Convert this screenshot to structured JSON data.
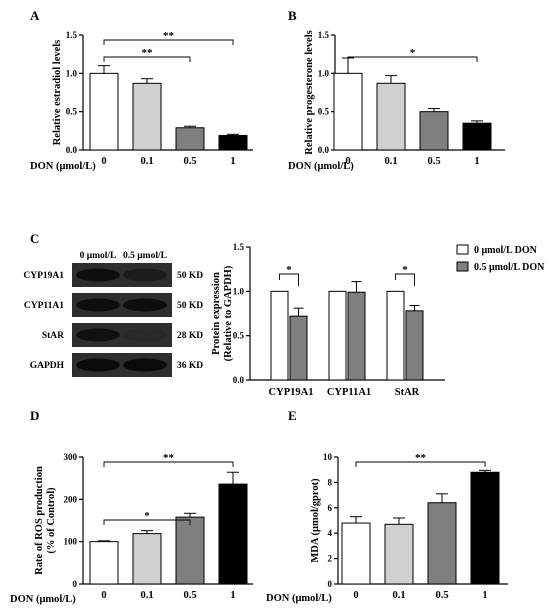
{
  "chart_data": [
    {
      "panel": "A",
      "type": "bar",
      "ylabel": "Relative estradiol levels",
      "xlabel": "DON (μmol/L)",
      "categories": [
        "0",
        "0.1",
        "0.5",
        "1"
      ],
      "values": [
        1.0,
        0.87,
        0.29,
        0.19
      ],
      "errors": [
        0.1,
        0.06,
        0.02,
        0.015
      ],
      "colors": [
        "#ffffff",
        "#d0d0d0",
        "#7f7f7f",
        "#000000"
      ],
      "ylim": [
        0,
        1.5
      ],
      "yticks": [
        "0.0",
        "0.5",
        "1.0",
        "1.5"
      ],
      "significance": [
        {
          "from": 0,
          "to": 2,
          "label": "**"
        },
        {
          "from": 0,
          "to": 3,
          "label": "**"
        }
      ]
    },
    {
      "panel": "B",
      "type": "bar",
      "ylabel": "Relative progesterone levels",
      "xlabel": "DON (μmol/L)",
      "categories": [
        "0",
        "0.1",
        "0.5",
        "1"
      ],
      "values": [
        1.0,
        0.87,
        0.5,
        0.35
      ],
      "errors": [
        0.2,
        0.1,
        0.04,
        0.03
      ],
      "colors": [
        "#ffffff",
        "#d0d0d0",
        "#7f7f7f",
        "#000000"
      ],
      "ylim": [
        0,
        1.5
      ],
      "yticks": [
        "0.0",
        "0.5",
        "1.0",
        "1.5"
      ],
      "significance": [
        {
          "from": 0,
          "to": 3,
          "label": "*"
        }
      ]
    },
    {
      "panel": "C",
      "type": "bar",
      "ylabel": "Protein expression (Relative to GAPDH)",
      "categories": [
        "CYP19A1",
        "CYP11A1",
        "StAR"
      ],
      "series": [
        {
          "name": "0 μmol/L DON",
          "values": [
            1.0,
            1.0,
            1.0
          ],
          "errors": [
            0,
            0,
            0
          ],
          "color": "#ffffff"
        },
        {
          "name": "0.5 μmol/L DON",
          "values": [
            0.72,
            0.99,
            0.78
          ],
          "errors": [
            0.09,
            0.12,
            0.06
          ],
          "color": "#7f7f7f"
        }
      ],
      "ylim": [
        0,
        1.5
      ],
      "yticks": [
        "0.0",
        "0.5",
        "1.0",
        "1.5"
      ],
      "legend": "top-right",
      "significance": [
        {
          "category": 0,
          "label": "*"
        },
        {
          "category": 2,
          "label": "*"
        }
      ]
    },
    {
      "panel": "D",
      "type": "bar",
      "ylabel": "Rate of ROS production (% of Control)",
      "xlabel": "DON (μmol/L)",
      "categories": [
        "0",
        "0.1",
        "0.5",
        "1"
      ],
      "values": [
        100,
        119,
        158,
        236
      ],
      "errors": [
        2,
        7,
        9,
        28
      ],
      "colors": [
        "#ffffff",
        "#d0d0d0",
        "#7f7f7f",
        "#000000"
      ],
      "ylim": [
        0,
        300
      ],
      "yticks": [
        "0",
        "100",
        "200",
        "300"
      ],
      "significance": [
        {
          "from": 0,
          "to": 2,
          "label": "*"
        },
        {
          "from": 0,
          "to": 3,
          "label": "**"
        }
      ]
    },
    {
      "panel": "E",
      "type": "bar",
      "ylabel": "MDA (μmol/gprot)",
      "xlabel": "DON (μmol/L)",
      "categories": [
        "0",
        "0.1",
        "0.5",
        "1"
      ],
      "values": [
        4.8,
        4.7,
        6.4,
        8.8
      ],
      "errors": [
        0.5,
        0.5,
        0.7,
        0.15
      ],
      "colors": [
        "#ffffff",
        "#d0d0d0",
        "#7f7f7f",
        "#000000"
      ],
      "ylim": [
        0,
        10
      ],
      "yticks": [
        "0",
        "2",
        "4",
        "6",
        "8",
        "10"
      ],
      "significance": [
        {
          "from": 0,
          "to": 3,
          "label": "**"
        }
      ]
    }
  ],
  "blot": {
    "panel": "C",
    "column_labels": [
      "0 μmol/L",
      "0.5 μmol/L"
    ],
    "rows": [
      {
        "protein": "CYP19A1",
        "size": "50 KD",
        "intensity": [
          0.85,
          0.6
        ]
      },
      {
        "protein": "CYP11A1",
        "size": "50 KD",
        "intensity": [
          0.85,
          0.85
        ]
      },
      {
        "protein": "StAR",
        "size": "28 KD",
        "intensity": [
          0.8,
          0.35
        ]
      },
      {
        "protein": "GAPDH",
        "size": "36 KD",
        "intensity": [
          0.95,
          0.95
        ]
      }
    ]
  }
}
